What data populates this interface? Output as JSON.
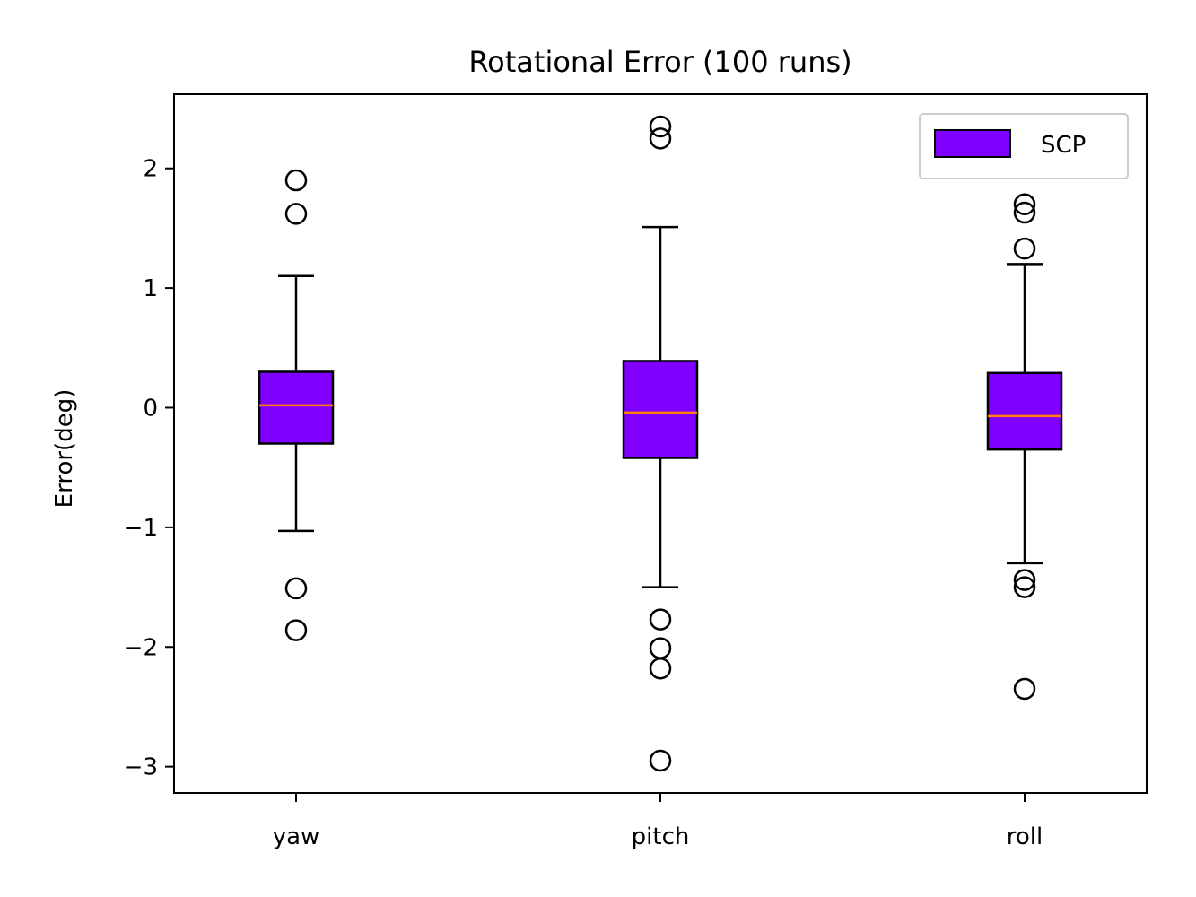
{
  "chart_data": {
    "type": "boxplot",
    "title": "Rotational Error (100 runs)",
    "xlabel": "",
    "ylabel": "Error(deg)",
    "ylim": [
      -3.22,
      2.62
    ],
    "yticks": [
      2,
      1,
      0,
      -1,
      -2,
      -3
    ],
    "ytick_labels": [
      "2",
      "1",
      "0",
      "−1",
      "−2",
      "−3"
    ],
    "categories": [
      "yaw",
      "pitch",
      "roll"
    ],
    "grid": false,
    "legend": {
      "position": "top-right",
      "entries": [
        "SCP"
      ]
    },
    "series": [
      {
        "name": "SCP",
        "color": "#7f00ff",
        "median_color": "#ff7f0e",
        "boxes": [
          {
            "category": "yaw",
            "whisker_low": -1.03,
            "q1": -0.3,
            "median": 0.02,
            "q3": 0.3,
            "whisker_high": 1.1,
            "outliers": [
              1.9,
              1.62,
              -1.51,
              -1.86
            ]
          },
          {
            "category": "pitch",
            "whisker_low": -1.5,
            "q1": -0.42,
            "median": -0.04,
            "q3": 0.39,
            "whisker_high": 1.51,
            "outliers": [
              2.35,
              2.25,
              -1.77,
              -2.01,
              -2.18,
              -2.95
            ]
          },
          {
            "category": "roll",
            "whisker_low": -1.3,
            "q1": -0.35,
            "median": -0.07,
            "q3": 0.29,
            "whisker_high": 1.2,
            "outliers": [
              1.7,
              1.63,
              1.33,
              -1.44,
              -1.5,
              -2.35
            ]
          }
        ]
      }
    ]
  }
}
